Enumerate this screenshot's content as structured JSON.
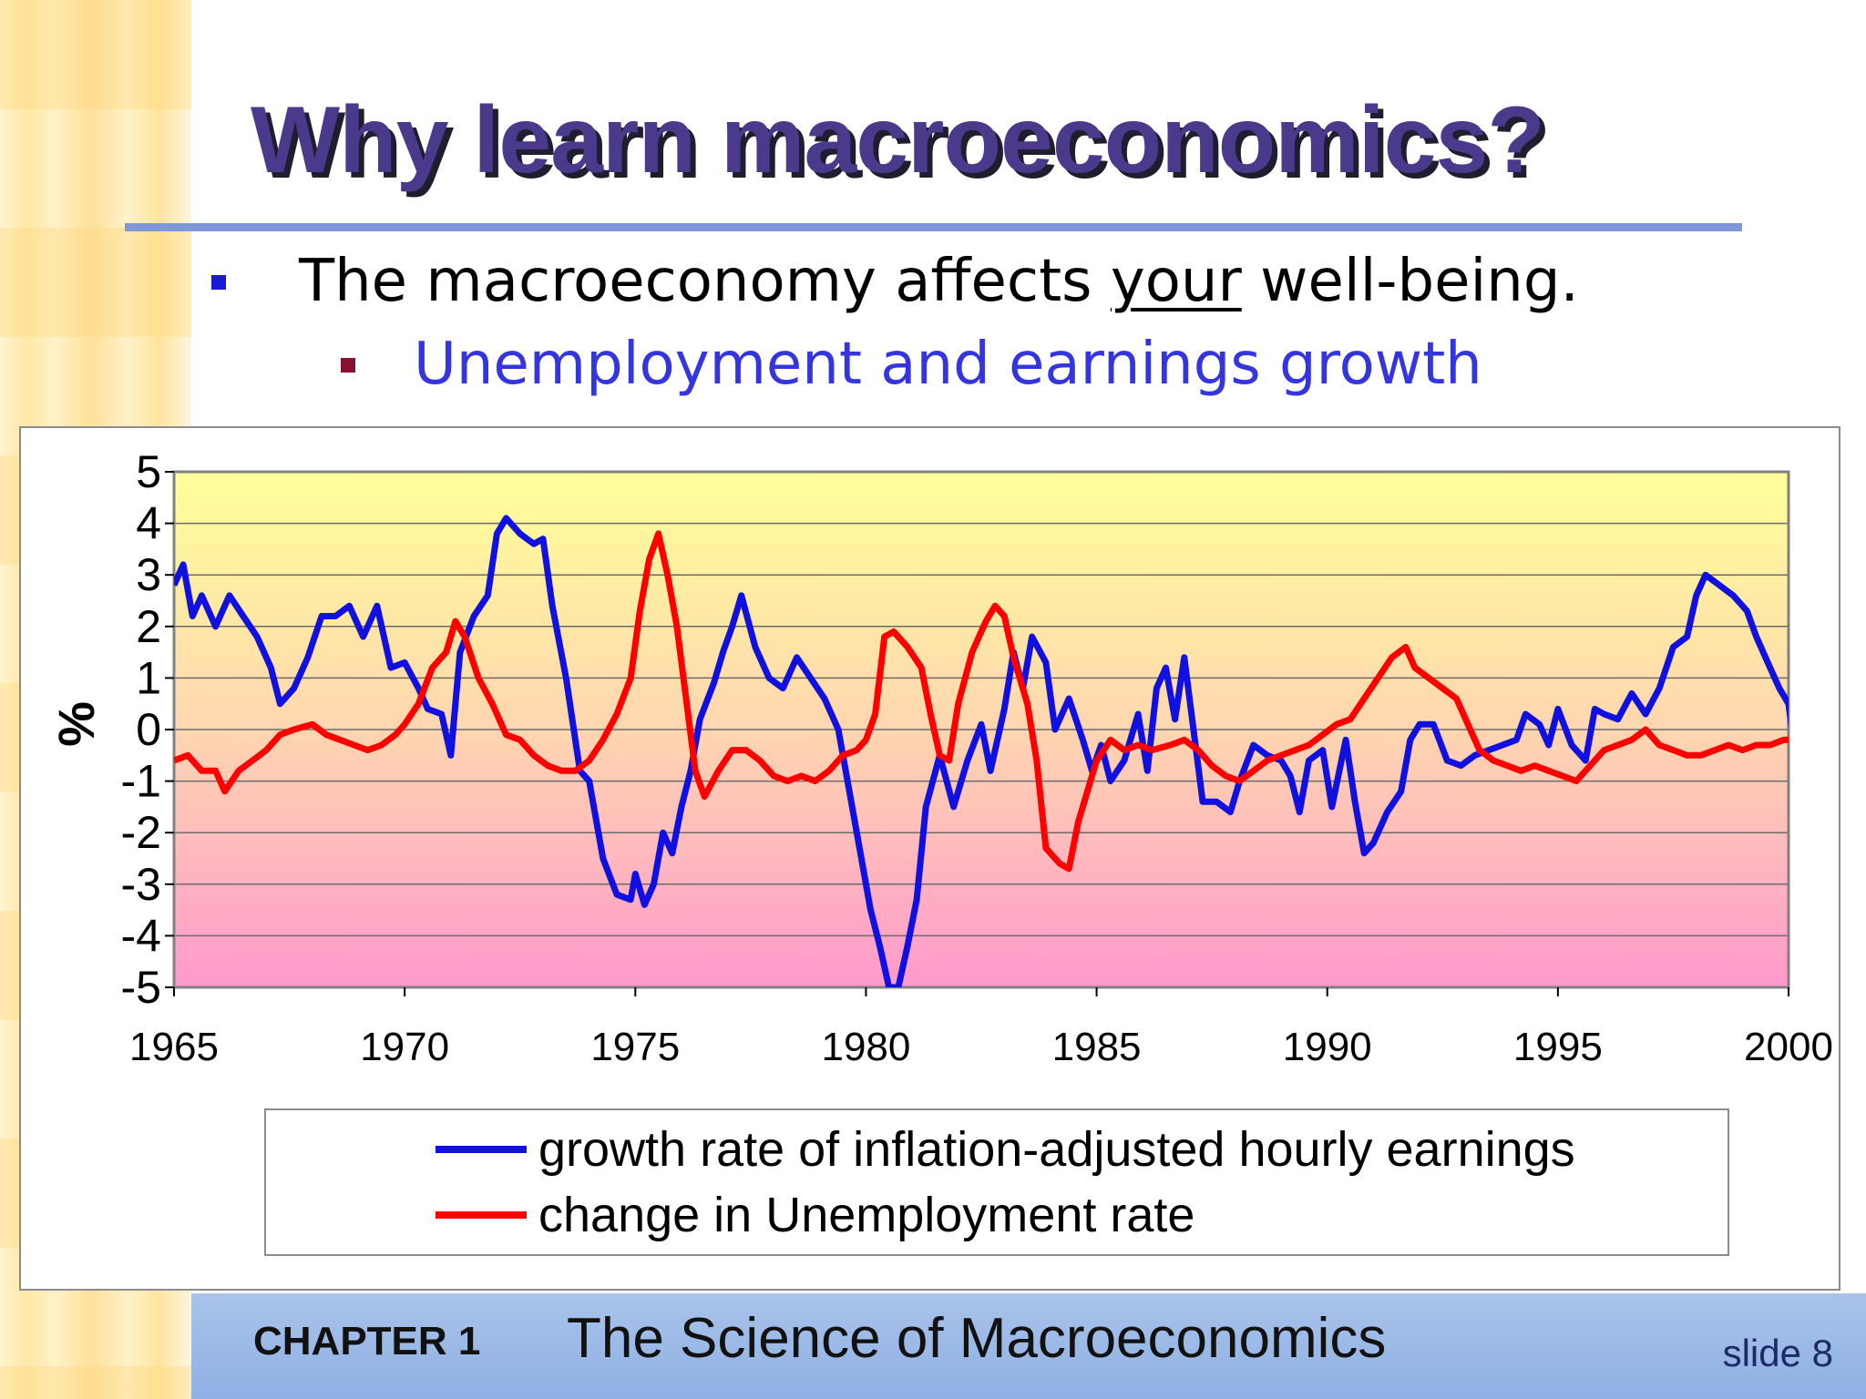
{
  "slide": {
    "title": "Why learn macroeconomics?",
    "bullet1_before": "The macroeconomy affects ",
    "bullet1_underlined": "your",
    "bullet1_after": " well-being.",
    "bullet2": "Unemployment and earnings growth",
    "footer_chapter": "CHAPTER 1",
    "footer_title": "The Science of Macroeconomics",
    "footer_slide": "slide 8"
  },
  "colors": {
    "title": "#4b3a8c",
    "bullet1_marker": "#1a1ad6",
    "bullet2_text": "#3535e0",
    "bullet2_marker": "#8a1030",
    "series_earnings": "#1010e0",
    "series_unemployment": "#ff0000",
    "plot_bg_top": "#ffff99",
    "plot_bg_bottom": "#ff99cc",
    "footer_bg": "#a9c3ea"
  },
  "chart_data": {
    "type": "line",
    "title": "",
    "xlabel": "",
    "ylabel": "%",
    "xlim": [
      1965,
      2000
    ],
    "ylim": [
      -5,
      5
    ],
    "x_ticks": [
      "1965",
      "1970",
      "1975",
      "1980",
      "1985",
      "1990",
      "1995",
      "2000"
    ],
    "y_ticks": [
      "5",
      "4",
      "3",
      "2",
      "1",
      "0",
      "-1",
      "-2",
      "-3",
      "-4",
      "-5"
    ],
    "grid": true,
    "legend_position": "bottom",
    "series": [
      {
        "name": "growth rate of inflation-adjusted hourly earnings",
        "color": "#1010e0",
        "points": [
          [
            1965.0,
            2.8
          ],
          [
            1965.2,
            3.2
          ],
          [
            1965.4,
            2.2
          ],
          [
            1965.6,
            2.6
          ],
          [
            1965.9,
            2.0
          ],
          [
            1966.2,
            2.6
          ],
          [
            1966.5,
            2.2
          ],
          [
            1966.8,
            1.8
          ],
          [
            1967.1,
            1.2
          ],
          [
            1967.3,
            0.5
          ],
          [
            1967.6,
            0.8
          ],
          [
            1967.9,
            1.4
          ],
          [
            1968.2,
            2.2
          ],
          [
            1968.5,
            2.2
          ],
          [
            1968.8,
            2.4
          ],
          [
            1969.1,
            1.8
          ],
          [
            1969.4,
            2.4
          ],
          [
            1969.7,
            1.2
          ],
          [
            1970.0,
            1.3
          ],
          [
            1970.3,
            0.8
          ],
          [
            1970.5,
            0.4
          ],
          [
            1970.8,
            0.3
          ],
          [
            1971.0,
            -0.5
          ],
          [
            1971.2,
            1.5
          ],
          [
            1971.5,
            2.2
          ],
          [
            1971.8,
            2.6
          ],
          [
            1972.0,
            3.8
          ],
          [
            1972.2,
            4.1
          ],
          [
            1972.5,
            3.8
          ],
          [
            1972.8,
            3.6
          ],
          [
            1973.0,
            3.7
          ],
          [
            1973.2,
            2.4
          ],
          [
            1973.5,
            1.0
          ],
          [
            1973.8,
            -0.8
          ],
          [
            1974.0,
            -1.0
          ],
          [
            1974.3,
            -2.5
          ],
          [
            1974.6,
            -3.2
          ],
          [
            1974.9,
            -3.3
          ],
          [
            1975.0,
            -2.8
          ],
          [
            1975.2,
            -3.4
          ],
          [
            1975.4,
            -3.0
          ],
          [
            1975.6,
            -2.0
          ],
          [
            1975.8,
            -2.4
          ],
          [
            1976.0,
            -1.5
          ],
          [
            1976.2,
            -0.8
          ],
          [
            1976.4,
            0.2
          ],
          [
            1976.7,
            0.9
          ],
          [
            1976.9,
            1.5
          ],
          [
            1977.1,
            2.0
          ],
          [
            1977.3,
            2.6
          ],
          [
            1977.6,
            1.6
          ],
          [
            1977.9,
            1.0
          ],
          [
            1978.2,
            0.8
          ],
          [
            1978.5,
            1.4
          ],
          [
            1978.8,
            1.0
          ],
          [
            1979.1,
            0.6
          ],
          [
            1979.4,
            0.0
          ],
          [
            1979.6,
            -1.0
          ],
          [
            1979.9,
            -2.5
          ],
          [
            1980.1,
            -3.5
          ],
          [
            1980.3,
            -4.2
          ],
          [
            1980.5,
            -5.0
          ],
          [
            1980.7,
            -5.0
          ],
          [
            1980.9,
            -4.2
          ],
          [
            1981.1,
            -3.3
          ],
          [
            1981.3,
            -1.5
          ],
          [
            1981.6,
            -0.5
          ],
          [
            1981.9,
            -1.5
          ],
          [
            1982.2,
            -0.6
          ],
          [
            1982.5,
            0.1
          ],
          [
            1982.7,
            -0.8
          ],
          [
            1983.0,
            0.4
          ],
          [
            1983.2,
            1.5
          ],
          [
            1983.4,
            0.8
          ],
          [
            1983.6,
            1.8
          ],
          [
            1983.9,
            1.3
          ],
          [
            1984.1,
            0.0
          ],
          [
            1984.4,
            0.6
          ],
          [
            1984.7,
            -0.2
          ],
          [
            1984.9,
            -0.8
          ],
          [
            1985.1,
            -0.3
          ],
          [
            1985.3,
            -1.0
          ],
          [
            1985.6,
            -0.6
          ],
          [
            1985.9,
            0.3
          ],
          [
            1986.1,
            -0.8
          ],
          [
            1986.3,
            0.8
          ],
          [
            1986.5,
            1.2
          ],
          [
            1986.7,
            0.2
          ],
          [
            1986.9,
            1.4
          ],
          [
            1987.1,
            0.0
          ],
          [
            1987.3,
            -1.4
          ],
          [
            1987.6,
            -1.4
          ],
          [
            1987.9,
            -1.6
          ],
          [
            1988.1,
            -1.0
          ],
          [
            1988.4,
            -0.3
          ],
          [
            1988.7,
            -0.5
          ],
          [
            1989.0,
            -0.6
          ],
          [
            1989.2,
            -0.9
          ],
          [
            1989.4,
            -1.6
          ],
          [
            1989.6,
            -0.6
          ],
          [
            1989.9,
            -0.4
          ],
          [
            1990.1,
            -1.5
          ],
          [
            1990.4,
            -0.2
          ],
          [
            1990.6,
            -1.4
          ],
          [
            1990.8,
            -2.4
          ],
          [
            1991.0,
            -2.2
          ],
          [
            1991.3,
            -1.6
          ],
          [
            1991.6,
            -1.2
          ],
          [
            1991.8,
            -0.2
          ],
          [
            1992.0,
            0.1
          ],
          [
            1992.3,
            0.1
          ],
          [
            1992.6,
            -0.6
          ],
          [
            1992.9,
            -0.7
          ],
          [
            1993.2,
            -0.5
          ],
          [
            1993.5,
            -0.4
          ],
          [
            1993.8,
            -0.3
          ],
          [
            1994.1,
            -0.2
          ],
          [
            1994.3,
            0.3
          ],
          [
            1994.6,
            0.1
          ],
          [
            1994.8,
            -0.3
          ],
          [
            1995.0,
            0.4
          ],
          [
            1995.3,
            -0.3
          ],
          [
            1995.6,
            -0.6
          ],
          [
            1995.8,
            0.4
          ],
          [
            1996.0,
            0.3
          ],
          [
            1996.3,
            0.2
          ],
          [
            1996.6,
            0.7
          ],
          [
            1996.9,
            0.3
          ],
          [
            1997.2,
            0.8
          ],
          [
            1997.5,
            1.6
          ],
          [
            1997.8,
            1.8
          ],
          [
            1998.0,
            2.6
          ],
          [
            1998.2,
            3.0
          ],
          [
            1998.5,
            2.8
          ],
          [
            1998.8,
            2.6
          ],
          [
            1999.1,
            2.3
          ],
          [
            1999.3,
            1.8
          ],
          [
            1999.6,
            1.2
          ],
          [
            1999.8,
            0.8
          ],
          [
            2000.0,
            0.5
          ],
          [
            2000.1,
            -0.2
          ]
        ]
      },
      {
        "name": "change in Unemployment rate",
        "color": "#ff0000",
        "points": [
          [
            1965.0,
            -0.6
          ],
          [
            1965.3,
            -0.5
          ],
          [
            1965.6,
            -0.8
          ],
          [
            1965.9,
            -0.8
          ],
          [
            1966.1,
            -1.2
          ],
          [
            1966.4,
            -0.8
          ],
          [
            1966.7,
            -0.6
          ],
          [
            1967.0,
            -0.4
          ],
          [
            1967.3,
            -0.1
          ],
          [
            1967.6,
            0.0
          ],
          [
            1968.0,
            0.1
          ],
          [
            1968.3,
            -0.1
          ],
          [
            1968.6,
            -0.2
          ],
          [
            1968.9,
            -0.3
          ],
          [
            1969.2,
            -0.4
          ],
          [
            1969.5,
            -0.3
          ],
          [
            1969.8,
            -0.1
          ],
          [
            1970.0,
            0.1
          ],
          [
            1970.3,
            0.5
          ],
          [
            1970.6,
            1.2
          ],
          [
            1970.9,
            1.5
          ],
          [
            1971.1,
            2.1
          ],
          [
            1971.3,
            1.8
          ],
          [
            1971.6,
            1.0
          ],
          [
            1971.9,
            0.5
          ],
          [
            1972.2,
            -0.1
          ],
          [
            1972.5,
            -0.2
          ],
          [
            1972.8,
            -0.5
          ],
          [
            1973.1,
            -0.7
          ],
          [
            1973.4,
            -0.8
          ],
          [
            1973.7,
            -0.8
          ],
          [
            1974.0,
            -0.6
          ],
          [
            1974.3,
            -0.2
          ],
          [
            1974.6,
            0.3
          ],
          [
            1974.9,
            1.0
          ],
          [
            1975.1,
            2.3
          ],
          [
            1975.3,
            3.3
          ],
          [
            1975.5,
            3.8
          ],
          [
            1975.7,
            3.0
          ],
          [
            1975.9,
            2.0
          ],
          [
            1976.1,
            0.6
          ],
          [
            1976.3,
            -0.8
          ],
          [
            1976.5,
            -1.3
          ],
          [
            1976.8,
            -0.8
          ],
          [
            1977.1,
            -0.4
          ],
          [
            1977.4,
            -0.4
          ],
          [
            1977.7,
            -0.6
          ],
          [
            1978.0,
            -0.9
          ],
          [
            1978.3,
            -1.0
          ],
          [
            1978.6,
            -0.9
          ],
          [
            1978.9,
            -1.0
          ],
          [
            1979.2,
            -0.8
          ],
          [
            1979.5,
            -0.5
          ],
          [
            1979.8,
            -0.4
          ],
          [
            1980.0,
            -0.2
          ],
          [
            1980.2,
            0.3
          ],
          [
            1980.4,
            1.8
          ],
          [
            1980.6,
            1.9
          ],
          [
            1980.9,
            1.6
          ],
          [
            1981.2,
            1.2
          ],
          [
            1981.4,
            0.3
          ],
          [
            1981.6,
            -0.5
          ],
          [
            1981.8,
            -0.6
          ],
          [
            1982.0,
            0.5
          ],
          [
            1982.3,
            1.5
          ],
          [
            1982.6,
            2.1
          ],
          [
            1982.8,
            2.4
          ],
          [
            1983.0,
            2.2
          ],
          [
            1983.2,
            1.4
          ],
          [
            1983.5,
            0.5
          ],
          [
            1983.7,
            -0.6
          ],
          [
            1983.9,
            -2.3
          ],
          [
            1984.2,
            -2.6
          ],
          [
            1984.4,
            -2.7
          ],
          [
            1984.6,
            -1.8
          ],
          [
            1984.8,
            -1.2
          ],
          [
            1985.0,
            -0.6
          ],
          [
            1985.3,
            -0.2
          ],
          [
            1985.6,
            -0.4
          ],
          [
            1985.9,
            -0.3
          ],
          [
            1986.2,
            -0.4
          ],
          [
            1986.6,
            -0.3
          ],
          [
            1986.9,
            -0.2
          ],
          [
            1987.2,
            -0.4
          ],
          [
            1987.5,
            -0.7
          ],
          [
            1987.8,
            -0.9
          ],
          [
            1988.1,
            -1.0
          ],
          [
            1988.4,
            -0.8
          ],
          [
            1988.7,
            -0.6
          ],
          [
            1989.0,
            -0.5
          ],
          [
            1989.3,
            -0.4
          ],
          [
            1989.6,
            -0.3
          ],
          [
            1989.9,
            -0.1
          ],
          [
            1990.2,
            0.1
          ],
          [
            1990.5,
            0.2
          ],
          [
            1990.8,
            0.6
          ],
          [
            1991.1,
            1.0
          ],
          [
            1991.4,
            1.4
          ],
          [
            1991.7,
            1.6
          ],
          [
            1991.9,
            1.2
          ],
          [
            1992.2,
            1.0
          ],
          [
            1992.5,
            0.8
          ],
          [
            1992.8,
            0.6
          ],
          [
            1993.0,
            0.2
          ],
          [
            1993.3,
            -0.4
          ],
          [
            1993.6,
            -0.6
          ],
          [
            1993.9,
            -0.7
          ],
          [
            1994.2,
            -0.8
          ],
          [
            1994.5,
            -0.7
          ],
          [
            1994.8,
            -0.8
          ],
          [
            1995.1,
            -0.9
          ],
          [
            1995.4,
            -1.0
          ],
          [
            1995.7,
            -0.7
          ],
          [
            1996.0,
            -0.4
          ],
          [
            1996.3,
            -0.3
          ],
          [
            1996.6,
            -0.2
          ],
          [
            1996.9,
            0.0
          ],
          [
            1997.2,
            -0.3
          ],
          [
            1997.5,
            -0.4
          ],
          [
            1997.8,
            -0.5
          ],
          [
            1998.1,
            -0.5
          ],
          [
            1998.4,
            -0.4
          ],
          [
            1998.7,
            -0.3
          ],
          [
            1999.0,
            -0.4
          ],
          [
            1999.3,
            -0.3
          ],
          [
            1999.6,
            -0.3
          ],
          [
            1999.9,
            -0.2
          ],
          [
            2000.1,
            -0.2
          ]
        ]
      }
    ]
  }
}
